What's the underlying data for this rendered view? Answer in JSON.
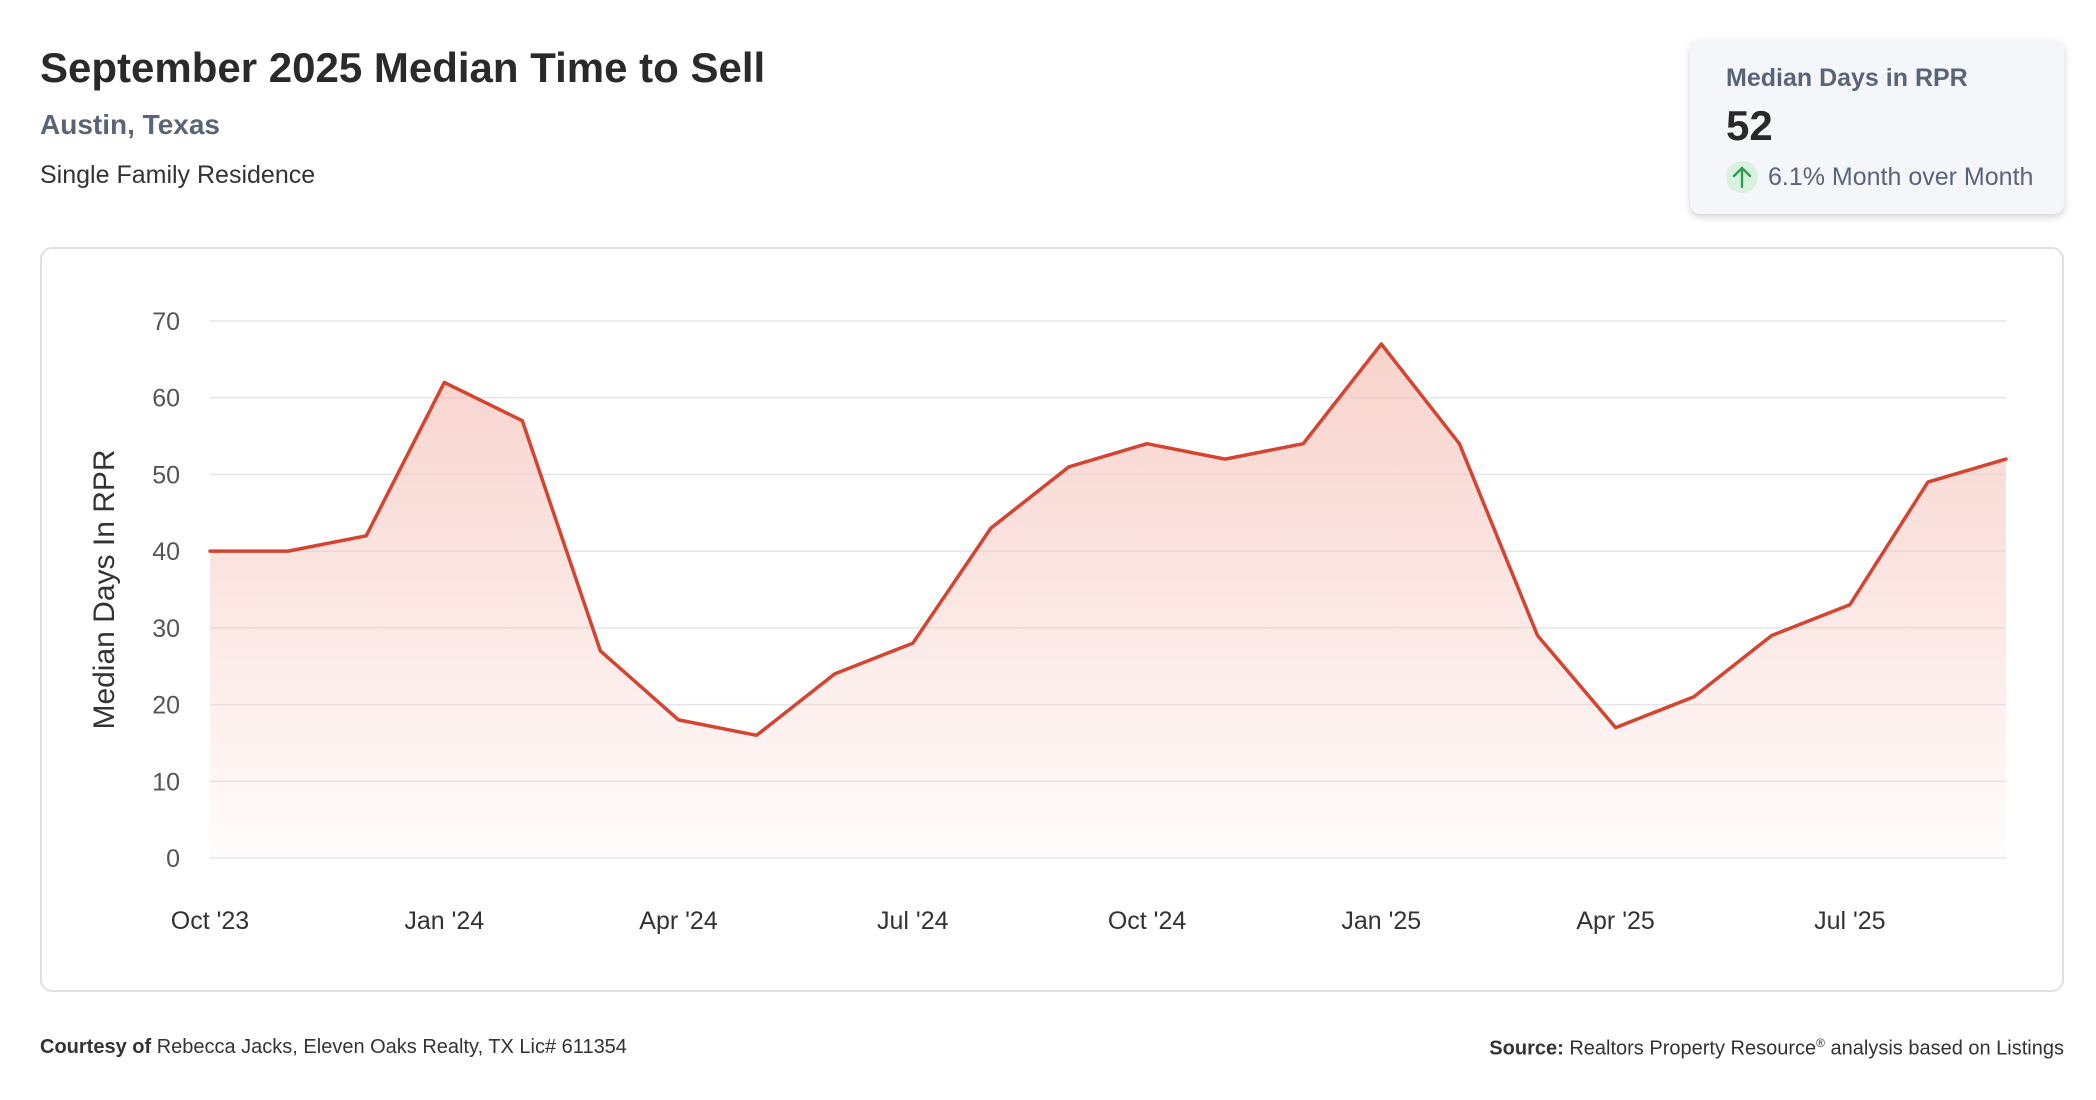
{
  "header": {
    "title": "September 2025 Median Time to Sell",
    "location": "Austin, Texas",
    "property_type": "Single Family Residence"
  },
  "stat_card": {
    "label": "Median Days in RPR",
    "value": "52",
    "change_text": "6.1% Month over Month",
    "change_icon": "arrow-up-icon",
    "change_color": "#2e9e4f"
  },
  "footer": {
    "courtesy_label": "Courtesy of",
    "courtesy_text": "Rebecca Jacks, Eleven Oaks Realty, TX Lic# 611354",
    "source_label": "Source:",
    "source_text_1": "Realtors Property Resource",
    "source_sup": "®",
    "source_text_2": "analysis based on Listings"
  },
  "chart_data": {
    "type": "area",
    "ylabel": "Median Days In RPR",
    "xlabel": "",
    "ylim": [
      0,
      70
    ],
    "yticks": [
      0,
      10,
      20,
      30,
      40,
      50,
      60,
      70
    ],
    "grid": true,
    "line_color": "#d44430",
    "fill_color": "#f6c3bb",
    "x": [
      "2023-10",
      "2023-11",
      "2023-12",
      "2024-01",
      "2024-02",
      "2024-03",
      "2024-04",
      "2024-05",
      "2024-06",
      "2024-07",
      "2024-08",
      "2024-09",
      "2024-10",
      "2024-11",
      "2024-12",
      "2025-01",
      "2025-02",
      "2025-03",
      "2025-04",
      "2025-05",
      "2025-06",
      "2025-07",
      "2025-08",
      "2025-09"
    ],
    "values": [
      40,
      40,
      42,
      62,
      57,
      27,
      18,
      16,
      24,
      28,
      43,
      51,
      54,
      52,
      54,
      67,
      54,
      29,
      17,
      21,
      29,
      33,
      49,
      52
    ],
    "tick_labels": [
      {
        "x": "2023-10",
        "label": "Oct '23"
      },
      {
        "x": "2024-01",
        "label": "Jan '24"
      },
      {
        "x": "2024-04",
        "label": "Apr '24"
      },
      {
        "x": "2024-07",
        "label": "Jul '24"
      },
      {
        "x": "2024-10",
        "label": "Oct '24"
      },
      {
        "x": "2025-01",
        "label": "Jan '25"
      },
      {
        "x": "2025-04",
        "label": "Apr '25"
      },
      {
        "x": "2025-07",
        "label": "Jul '25"
      }
    ]
  }
}
